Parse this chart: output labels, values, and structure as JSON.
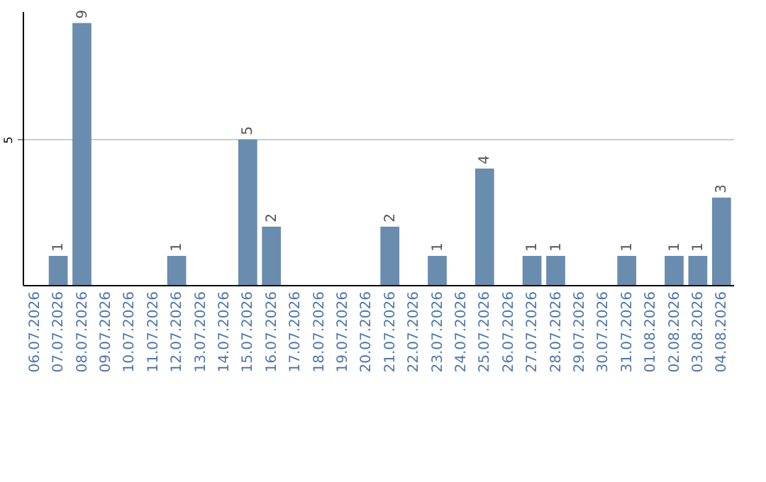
{
  "chart_data": {
    "type": "bar",
    "categories": [
      "06.07.2026",
      "07.07.2026",
      "08.07.2026",
      "09.07.2026",
      "10.07.2026",
      "11.07.2026",
      "12.07.2026",
      "13.07.2026",
      "14.07.2026",
      "15.07.2026",
      "16.07.2026",
      "17.07.2026",
      "18.07.2026",
      "19.07.2026",
      "20.07.2026",
      "21.07.2026",
      "22.07.2026",
      "23.07.2026",
      "24.07.2026",
      "25.07.2026",
      "26.07.2026",
      "27.07.2026",
      "28.07.2026",
      "29.07.2026",
      "30.07.2026",
      "31.07.2026",
      "01.08.2026",
      "02.08.2026",
      "03.08.2026",
      "04.08.2026"
    ],
    "values": [
      0,
      1,
      9,
      0,
      0,
      0,
      1,
      0,
      0,
      5,
      2,
      0,
      0,
      0,
      0,
      2,
      0,
      1,
      0,
      4,
      0,
      1,
      1,
      0,
      0,
      1,
      0,
      1,
      1,
      3
    ],
    "value_labels": [
      null,
      "1",
      "9",
      null,
      null,
      null,
      "1",
      null,
      null,
      "5",
      "2",
      null,
      null,
      null,
      null,
      "2",
      null,
      "1",
      null,
      "4",
      null,
      "1",
      "1",
      null,
      null,
      "1",
      null,
      "1",
      "1",
      "3"
    ],
    "color": "#6a8caf",
    "ylim": [
      0,
      9.4
    ],
    "yticks": [
      5
    ],
    "grid": "y"
  }
}
